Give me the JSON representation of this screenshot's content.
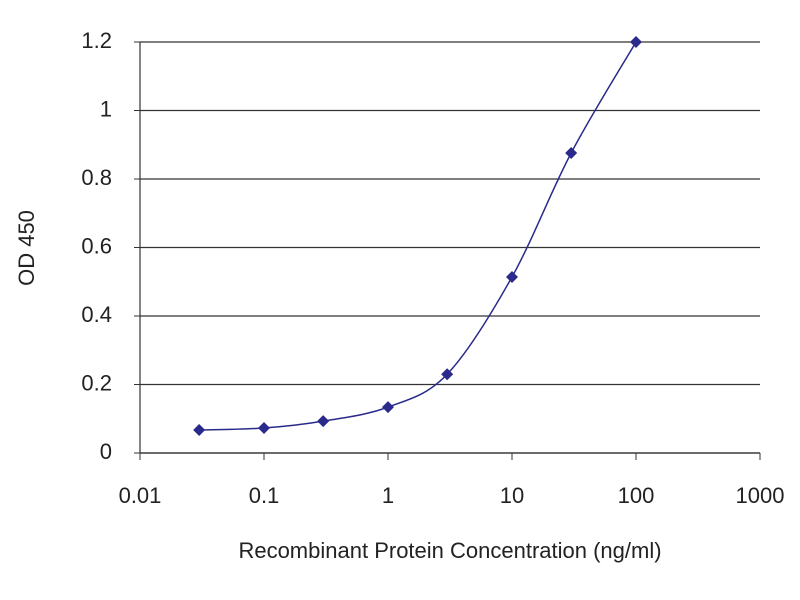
{
  "chart_data": {
    "type": "line",
    "x_label": "Recombinant Protein Concentration (ng/ml)",
    "y_label": "OD 450",
    "x": [
      0.03,
      0.1,
      0.3,
      1,
      3,
      10,
      30,
      100
    ],
    "series": [
      {
        "color": "#2a2a8c",
        "values": [
          0.067,
          0.073,
          0.093,
          0.134,
          0.23,
          0.514,
          0.876,
          1.2
        ]
      }
    ],
    "xlim": [
      0.01,
      1000
    ],
    "xticks": [
      0.01,
      0.1,
      1,
      10,
      100,
      1000
    ],
    "xlog": true,
    "ylim": [
      0,
      1.2
    ],
    "yticks": [
      0,
      0.2,
      0.4,
      0.6,
      0.8,
      1,
      1.2
    ],
    "grid": true
  }
}
